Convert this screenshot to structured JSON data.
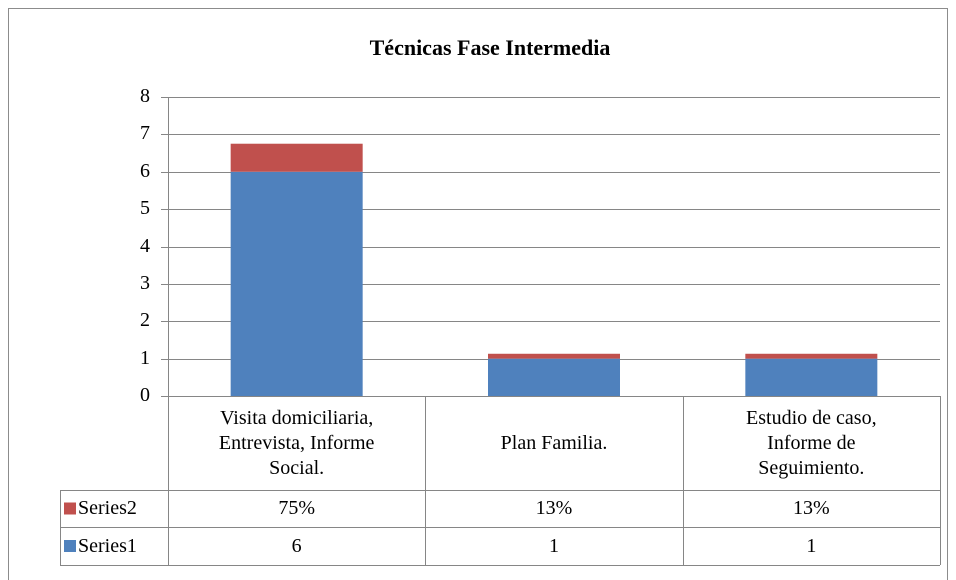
{
  "chart_data": {
    "type": "stacked_bar",
    "title": "Técnicas Fase Intermedia",
    "categories": [
      "Visita domiciliaria, Entrevista, Informe Social.",
      "Plan Familia.",
      "Estudio de caso, Informe de Seguimiento."
    ],
    "series": [
      {
        "name": "Series1",
        "color": "#4f81bd",
        "values": [
          6,
          1,
          1
        ]
      },
      {
        "name": "Series2",
        "color": "#c0504d",
        "values": [
          0.75,
          0.13,
          0.13
        ],
        "value_labels": [
          "75%",
          "13%",
          "13%"
        ]
      }
    ],
    "ylim": [
      0,
      8
    ],
    "yticks": [
      0,
      1,
      2,
      3,
      4,
      5,
      6,
      7,
      8
    ],
    "grid": true,
    "legend": "data-table"
  }
}
